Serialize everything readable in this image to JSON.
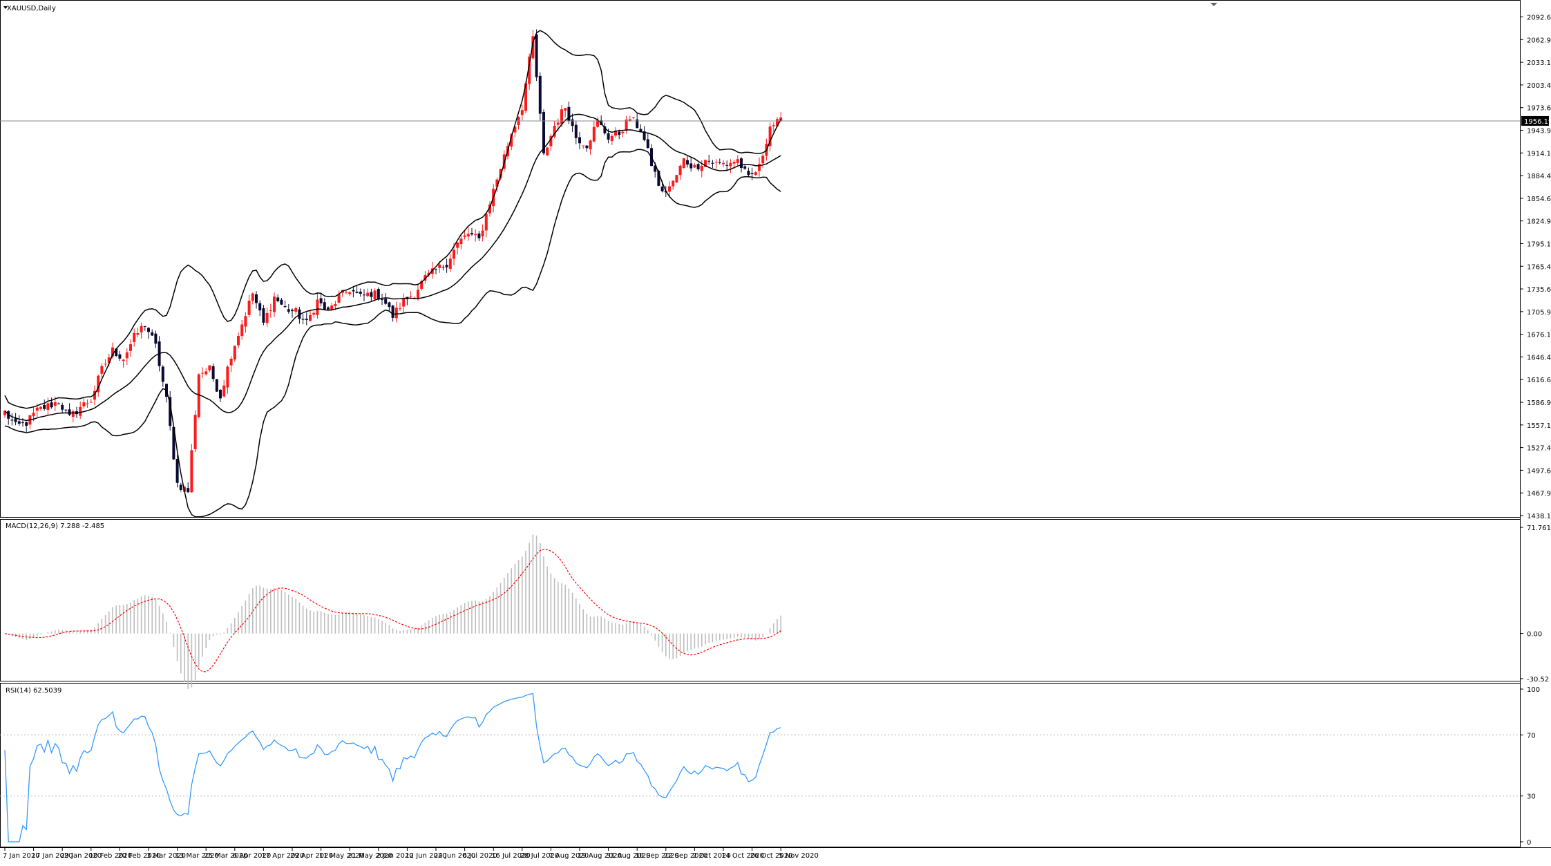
{
  "panels": {
    "price_label": "XAUUSD,Daily",
    "macd_label": "MACD(12,26,9) 7.288 -2.485",
    "rsi_label": "RSI(14) 62.5039"
  },
  "colors": {
    "bull": "#ff1a1a",
    "bear": "#0a0a32",
    "band": "#000000",
    "macd_hist": "#bdbdbd",
    "macd_signal": "#ff0000",
    "rsi_line": "#3399ff",
    "grid_level": "#b0b0b0"
  },
  "chart_data": [
    {
      "type": "candlestick",
      "panel": "price",
      "title": "XAUUSD,Daily",
      "ylim": [
        1438.15,
        2104
      ],
      "current_price": 1956.19,
      "y_ticks": [
        "2092.65",
        "2062.90",
        "2033.15",
        "2003.40",
        "1973.65",
        "1943.90",
        "1914.15",
        "1884.40",
        "1854.65",
        "1824.90",
        "1795.15",
        "1765.40",
        "1735.65",
        "1705.90",
        "1676.15",
        "1646.40",
        "1616.65",
        "1586.90",
        "1557.15",
        "1527.40",
        "1497.65",
        "1467.90",
        "1438.15"
      ],
      "x_ticks": [
        "7 Jan 2020",
        "17 Jan 2020",
        "29 Jan 2020",
        "10 Feb 2020",
        "20 Feb 2020",
        "3 Mar 2020",
        "13 Mar 2020",
        "25 Mar 2020",
        "6 Apr 2020",
        "17 Apr 2020",
        "29 Apr 2020",
        "11 May 2020",
        "21 May 2020",
        "2 Jun 2020",
        "12 Jun 2020",
        "24 Jun 2020",
        "6 Jul 2020",
        "16 Jul 2020",
        "28 Jul 2020",
        "7 Aug 2020",
        "19 Aug 2020",
        "31 Aug 2020",
        "10 Sep 2020",
        "22 Sep 2020",
        "2 Oct 2020",
        "14 Oct 2020",
        "26 Oct 2020",
        "5 Nov 2020"
      ],
      "close_anchors": [
        1574,
        1555,
        1560,
        1576,
        1582,
        1588,
        1566,
        1581,
        1590,
        1630,
        1655,
        1645,
        1672,
        1690,
        1660,
        1590,
        1480,
        1470,
        1625,
        1630,
        1595,
        1650,
        1690,
        1730,
        1690,
        1725,
        1710,
        1705,
        1690,
        1720,
        1705,
        1725,
        1735,
        1725,
        1730,
        1725,
        1700,
        1720,
        1730,
        1750,
        1760,
        1770,
        1795,
        1808,
        1800,
        1850,
        1895,
        1940,
        1975,
        2065,
        1910,
        1950,
        1975,
        1935,
        1925,
        1955,
        1935,
        1940,
        1960,
        1945,
        1900,
        1860,
        1875,
        1905,
        1895,
        1905,
        1900,
        1900,
        1905,
        1880,
        1895,
        1950,
        1955
      ],
      "bollinger": "20-period bands (upper, middle, lower)"
    },
    {
      "type": "bar",
      "panel": "macd",
      "title": "MACD(12,26,9) 7.288 -2.485",
      "ylim": [
        -30.52,
        71.761
      ],
      "y_ticks": [
        "71.761",
        "0.00",
        "-30.52"
      ],
      "last_main": 7.288,
      "last_signal": -2.485
    },
    {
      "type": "line",
      "panel": "rsi",
      "title": "RSI(14) 62.5039",
      "ylim": [
        0,
        100
      ],
      "y_ticks": [
        "100",
        "70",
        "30",
        "0"
      ],
      "levels": [
        70,
        30
      ],
      "last_value": 62.5039
    }
  ]
}
